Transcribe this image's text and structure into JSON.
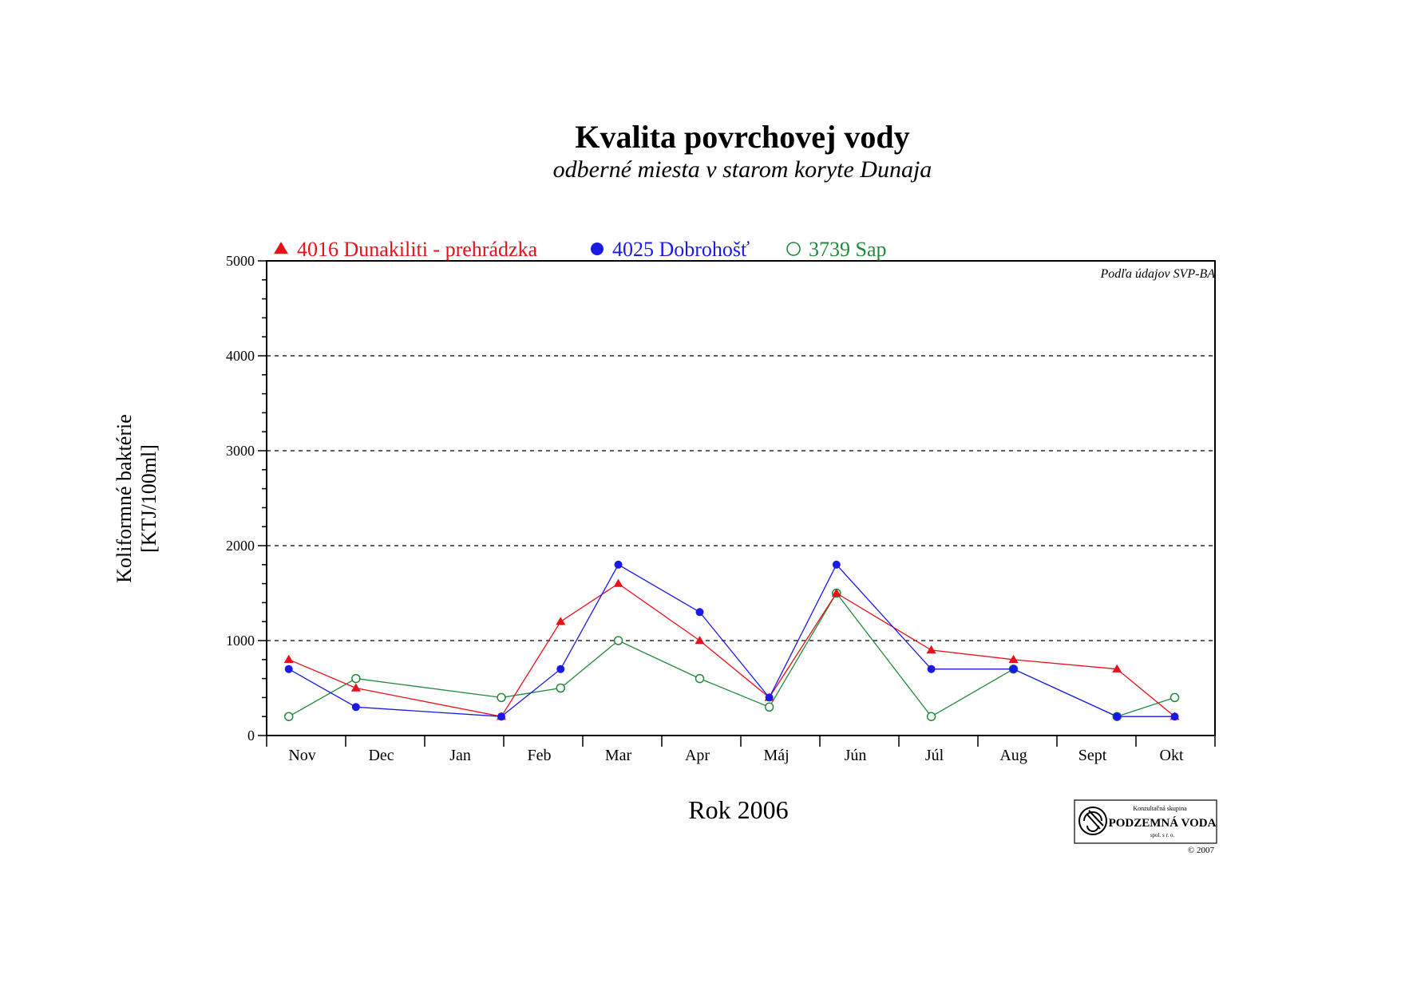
{
  "chart_data": {
    "type": "line",
    "title": "Kvalita povrchovej vody",
    "subtitle": "odberné miesta v starom koryte Dunaja",
    "ylabel_line1": "Koliformné baktérie",
    "ylabel_line2": "[KTJ/100ml]",
    "xlabel": "Rok 2006",
    "source_note": "Podľa údajov SVP-BA",
    "ylim": [
      0,
      5000
    ],
    "yticks": [
      0,
      1000,
      2000,
      3000,
      4000,
      5000
    ],
    "grid": "dashed horizontal at 1000, 2000, 3000, 4000",
    "legend_position": "top-left above plot",
    "month_labels": [
      "Nov",
      "Dec",
      "Jan",
      "Feb",
      "Mar",
      "Apr",
      "Máj",
      "Jún",
      "Júl",
      "Aug",
      "Sept",
      "Okt"
    ],
    "x_unit": "months from start of Nov 2005",
    "series": [
      {
        "name": "4016 Dunakiliti - prehrádzka",
        "color": "#e8101a",
        "marker": "filled-triangle",
        "x": [
          0.28,
          1.13,
          2.97,
          3.72,
          4.45,
          5.48,
          6.36,
          7.21,
          8.41,
          9.45,
          10.76,
          11.49
        ],
        "values": [
          800,
          500,
          200,
          1200,
          1600,
          1000,
          400,
          1500,
          900,
          800,
          700,
          200
        ]
      },
      {
        "name": "4025 Dobrohošť",
        "color": "#1a1ae6",
        "marker": "filled-circle",
        "x": [
          0.28,
          1.13,
          2.97,
          3.72,
          4.45,
          5.48,
          6.36,
          7.21,
          8.41,
          9.45,
          10.76,
          11.49
        ],
        "values": [
          700,
          300,
          200,
          700,
          1800,
          1300,
          400,
          1800,
          700,
          700,
          200,
          200
        ]
      },
      {
        "name": "3739 Sap",
        "color": "#22893a",
        "marker": "open-circle",
        "x": [
          0.28,
          1.13,
          2.97,
          3.72,
          4.45,
          5.48,
          6.36,
          7.21,
          8.41,
          9.45,
          10.76,
          11.49
        ],
        "values": [
          200,
          600,
          400,
          500,
          1000,
          600,
          300,
          1500,
          200,
          700,
          200,
          400
        ]
      }
    ]
  },
  "logo": {
    "top_text": "Konzultačná skupina",
    "name": "PODZEMNÁ VODA",
    "sub": "spol. s r. o.",
    "copyright": "© 2007"
  }
}
